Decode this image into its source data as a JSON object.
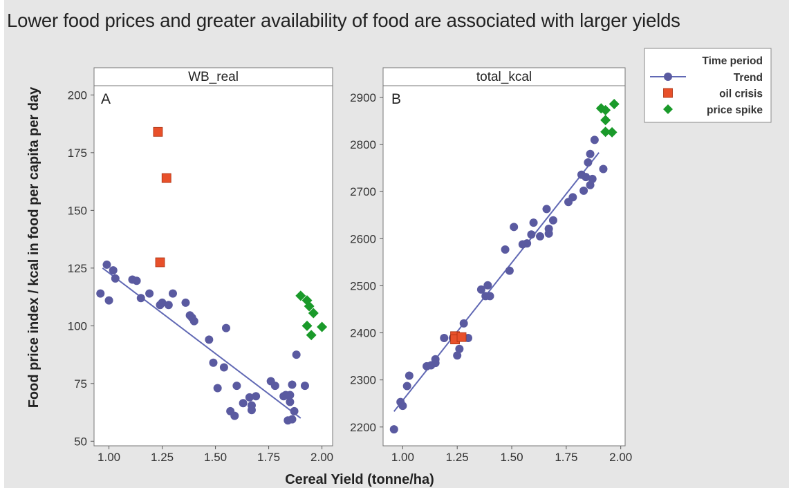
{
  "title": "Lower food prices and greater availability of food are associated with larger yields",
  "colors": {
    "trend": "#5a5aa0",
    "trend_line": "#6068b4",
    "oil_crisis": "#e8502a",
    "price_spike": "#1a9a2a"
  },
  "chart_data": {
    "type": "scatter",
    "xlabel": "Cereal Yield (tonne/ha)",
    "ylabel": "Food price index / kcal in food per capita per day",
    "legend": {
      "title": "Time period",
      "placement": "right",
      "entries": [
        "Trend",
        "oil crisis",
        "price spike"
      ]
    },
    "panels": [
      {
        "strip": "WB_real",
        "letter": "A",
        "xlim": [
          0.93,
          2.05
        ],
        "ylim": [
          48,
          204
        ],
        "xticks": [
          1.0,
          1.25,
          1.5,
          1.75,
          2.0
        ],
        "xtick_labels": [
          "1.00",
          "1.25",
          "1.50",
          "1.75",
          "2.00"
        ],
        "yticks": [
          50,
          75,
          100,
          125,
          150,
          175,
          200
        ],
        "ytick_labels": [
          "50",
          "75",
          "100",
          "125",
          "150",
          "175",
          "200"
        ],
        "trend_line": [
          [
            0.97,
            125
          ],
          [
            1.9,
            60
          ]
        ],
        "series": [
          {
            "name": "Trend",
            "marker": "circle",
            "points": [
              [
                0.96,
                114
              ],
              [
                0.99,
                126.5
              ],
              [
                1.0,
                111
              ],
              [
                1.02,
                124
              ],
              [
                1.03,
                120.5
              ],
              [
                1.11,
                120
              ],
              [
                1.13,
                119.5
              ],
              [
                1.15,
                112
              ],
              [
                1.19,
                114
              ],
              [
                1.24,
                109
              ],
              [
                1.25,
                110
              ],
              [
                1.28,
                109
              ],
              [
                1.3,
                114
              ],
              [
                1.36,
                110
              ],
              [
                1.38,
                104.5
              ],
              [
                1.39,
                103.5
              ],
              [
                1.4,
                102
              ],
              [
                1.47,
                94
              ],
              [
                1.49,
                84
              ],
              [
                1.51,
                73
              ],
              [
                1.54,
                82
              ],
              [
                1.55,
                99
              ],
              [
                1.57,
                63
              ],
              [
                1.59,
                61
              ],
              [
                1.6,
                74
              ],
              [
                1.63,
                66.5
              ],
              [
                1.66,
                69
              ],
              [
                1.67,
                63.5
              ],
              [
                1.67,
                65.5
              ],
              [
                1.69,
                69.5
              ],
              [
                1.76,
                76
              ],
              [
                1.78,
                74
              ],
              [
                1.82,
                69.5
              ],
              [
                1.83,
                70
              ],
              [
                1.84,
                59
              ],
              [
                1.85,
                70
              ],
              [
                1.85,
                67
              ],
              [
                1.86,
                74.5
              ],
              [
                1.86,
                59.5
              ],
              [
                1.87,
                63
              ],
              [
                1.88,
                87.5
              ],
              [
                1.92,
                74
              ]
            ]
          },
          {
            "name": "oil crisis",
            "marker": "square",
            "points": [
              [
                1.23,
                184
              ],
              [
                1.27,
                164
              ],
              [
                1.24,
                127.5
              ]
            ]
          },
          {
            "name": "price spike",
            "marker": "diamond",
            "points": [
              [
                1.9,
                113
              ],
              [
                1.93,
                111
              ],
              [
                1.94,
                108.5
              ],
              [
                1.96,
                105.5
              ],
              [
                1.93,
                100
              ],
              [
                1.95,
                96
              ],
              [
                2.0,
                99.5
              ]
            ]
          }
        ]
      },
      {
        "strip": "total_kcal",
        "letter": "B",
        "xlim": [
          0.91,
          2.02
        ],
        "ylim": [
          2160,
          2925
        ],
        "xticks": [
          1.0,
          1.25,
          1.5,
          1.75,
          2.0
        ],
        "xtick_labels": [
          "1.00",
          "1.25",
          "1.50",
          "1.75",
          "2.00"
        ],
        "yticks": [
          2200,
          2300,
          2400,
          2500,
          2600,
          2700,
          2800,
          2900
        ],
        "ytick_labels": [
          "2200",
          "2300",
          "2400",
          "2500",
          "2600",
          "2700",
          "2800",
          "2900"
        ],
        "trend_line": [
          [
            0.96,
            2233
          ],
          [
            1.9,
            2783
          ]
        ],
        "series": [
          {
            "name": "Trend",
            "marker": "circle",
            "points": [
              [
                0.96,
                2195
              ],
              [
                0.99,
                2253
              ],
              [
                1.0,
                2245
              ],
              [
                1.02,
                2287
              ],
              [
                1.03,
                2309
              ],
              [
                1.11,
                2329
              ],
              [
                1.13,
                2331
              ],
              [
                1.15,
                2336
              ],
              [
                1.15,
                2344
              ],
              [
                1.19,
                2389
              ],
              [
                1.23,
                2389
              ],
              [
                1.25,
                2352
              ],
              [
                1.26,
                2366
              ],
              [
                1.28,
                2420
              ],
              [
                1.3,
                2389
              ],
              [
                1.36,
                2492
              ],
              [
                1.38,
                2478
              ],
              [
                1.39,
                2501
              ],
              [
                1.4,
                2478
              ],
              [
                1.47,
                2577
              ],
              [
                1.49,
                2532
              ],
              [
                1.51,
                2625
              ],
              [
                1.55,
                2588
              ],
              [
                1.57,
                2590
              ],
              [
                1.59,
                2609
              ],
              [
                1.6,
                2634
              ],
              [
                1.63,
                2605
              ],
              [
                1.66,
                2663
              ],
              [
                1.67,
                2611
              ],
              [
                1.67,
                2621
              ],
              [
                1.69,
                2639
              ],
              [
                1.76,
                2678
              ],
              [
                1.78,
                2688
              ],
              [
                1.82,
                2736
              ],
              [
                1.83,
                2702
              ],
              [
                1.84,
                2731
              ],
              [
                1.85,
                2762
              ],
              [
                1.86,
                2780
              ],
              [
                1.86,
                2714
              ],
              [
                1.87,
                2727
              ],
              [
                1.88,
                2810
              ],
              [
                1.92,
                2748
              ]
            ]
          },
          {
            "name": "oil crisis",
            "marker": "square",
            "points": [
              [
                1.24,
                2393
              ],
              [
                1.24,
                2386
              ],
              [
                1.27,
                2391
              ]
            ]
          },
          {
            "name": "price spike",
            "marker": "diamond",
            "points": [
              [
                1.91,
                2877
              ],
              [
                1.93,
                2873
              ],
              [
                1.97,
                2886
              ],
              [
                1.93,
                2852
              ],
              [
                1.93,
                2827
              ],
              [
                1.96,
                2826
              ]
            ]
          }
        ]
      }
    ]
  }
}
